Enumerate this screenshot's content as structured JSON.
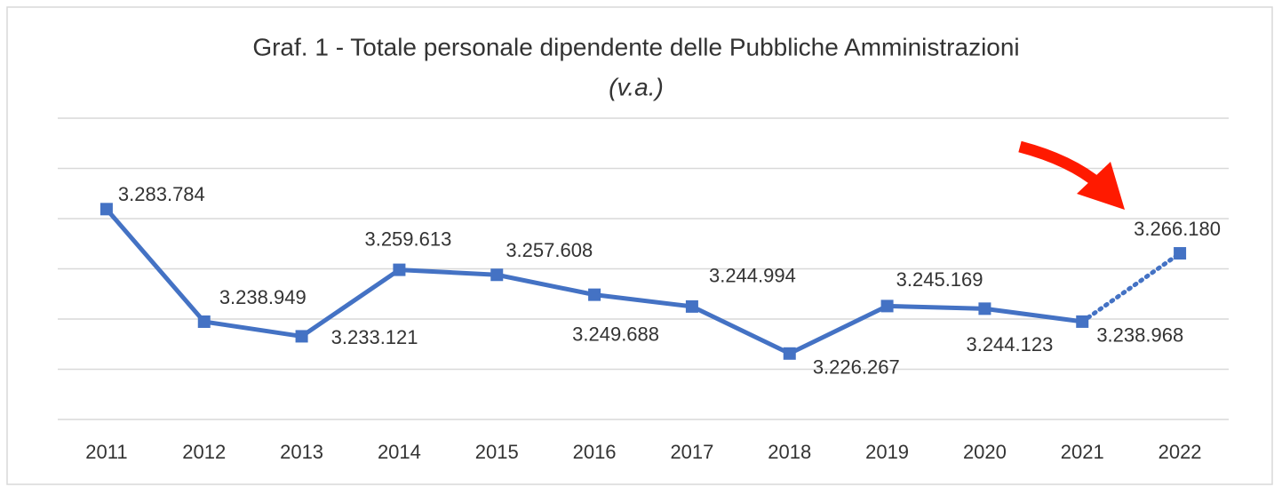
{
  "chart_data": {
    "type": "line",
    "title": "Graf. 1 - Totale personale dipendente delle Pubbliche Amministrazioni",
    "subtitle": "(v.a.)",
    "categories": [
      "2011",
      "2012",
      "2013",
      "2014",
      "2015",
      "2016",
      "2017",
      "2018",
      "2019",
      "2020",
      "2021",
      "2022"
    ],
    "values": [
      3283784,
      3238949,
      3233121,
      3259613,
      3257608,
      3249688,
      3244994,
      3226267,
      3245169,
      3244123,
      3238968,
      3266180
    ],
    "value_labels": [
      "3.283.784",
      "3.238.949",
      "3.233.121",
      "3.259.613",
      "3.257.608",
      "3.249.688",
      "3.244.994",
      "3.226.267",
      "3.245.169",
      "3.244.123",
      "3.238.968",
      "3.266.180"
    ],
    "color": "#4472c4",
    "dotted_last_segment": true,
    "ylim": [
      3200000,
      3320000
    ],
    "yticks": [
      3200000,
      3220000,
      3240000,
      3260000,
      3280000,
      3300000,
      3320000
    ],
    "grid": true
  }
}
